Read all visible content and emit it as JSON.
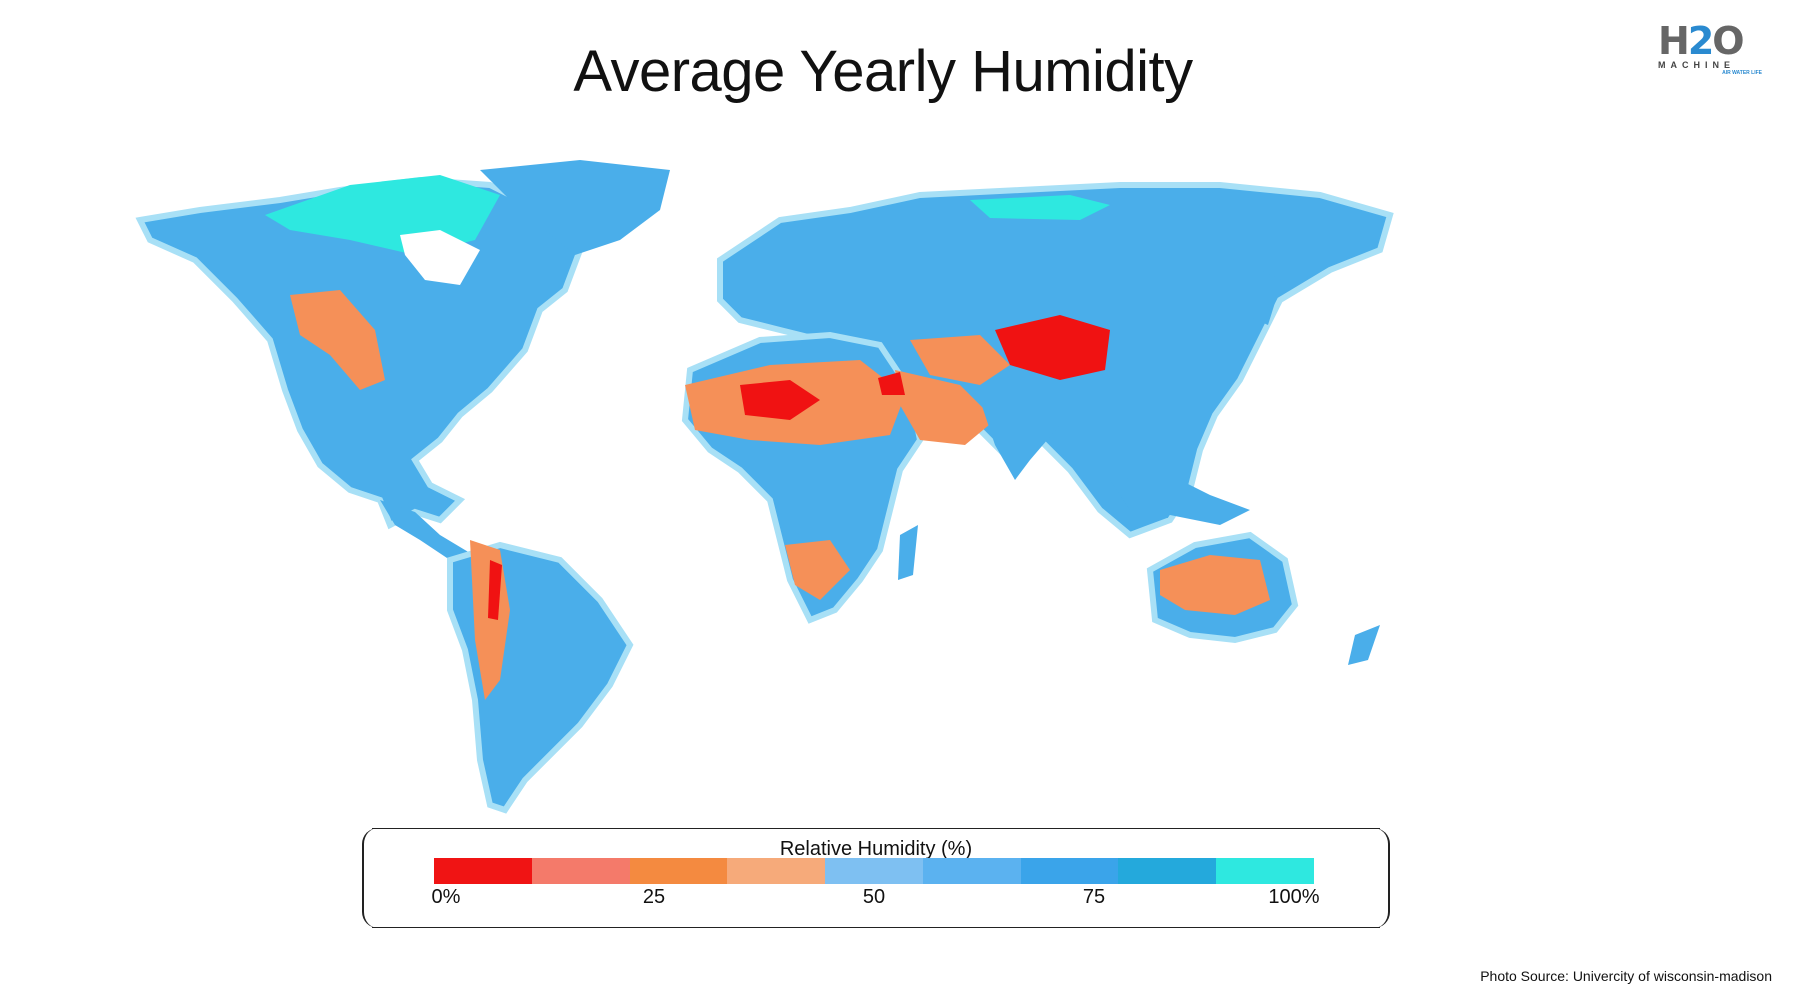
{
  "title": "Average Yearly Humidity",
  "logo": {
    "big_left": "H",
    "big_mid": "2",
    "big_right": "O",
    "word": "MACHINE",
    "tagline": "AIR WATER LIFE"
  },
  "legend": {
    "title": "Relative Humidity (%)",
    "colors": [
      "#f01414",
      "#f47a6a",
      "#f48a40",
      "#f6aa7a",
      "#7ec0f2",
      "#5bb2f0",
      "#3aa4ea",
      "#24a9dc",
      "#2ee8e0"
    ],
    "ticks": [
      {
        "label": "0%",
        "value": 0
      },
      {
        "label": "25",
        "value": 25
      },
      {
        "label": "50",
        "value": 50
      },
      {
        "label": "75",
        "value": 75
      },
      {
        "label": "100%",
        "value": 100
      }
    ]
  },
  "map": {
    "land_color": "#4aaeea",
    "dry_color": "#f59058",
    "very_dry_color": "#f01212",
    "humid_color": "#2ee8e0",
    "coast_color": "#a8e0f6"
  },
  "source": "Photo Source:  Univercity of wisconsin-madison"
}
